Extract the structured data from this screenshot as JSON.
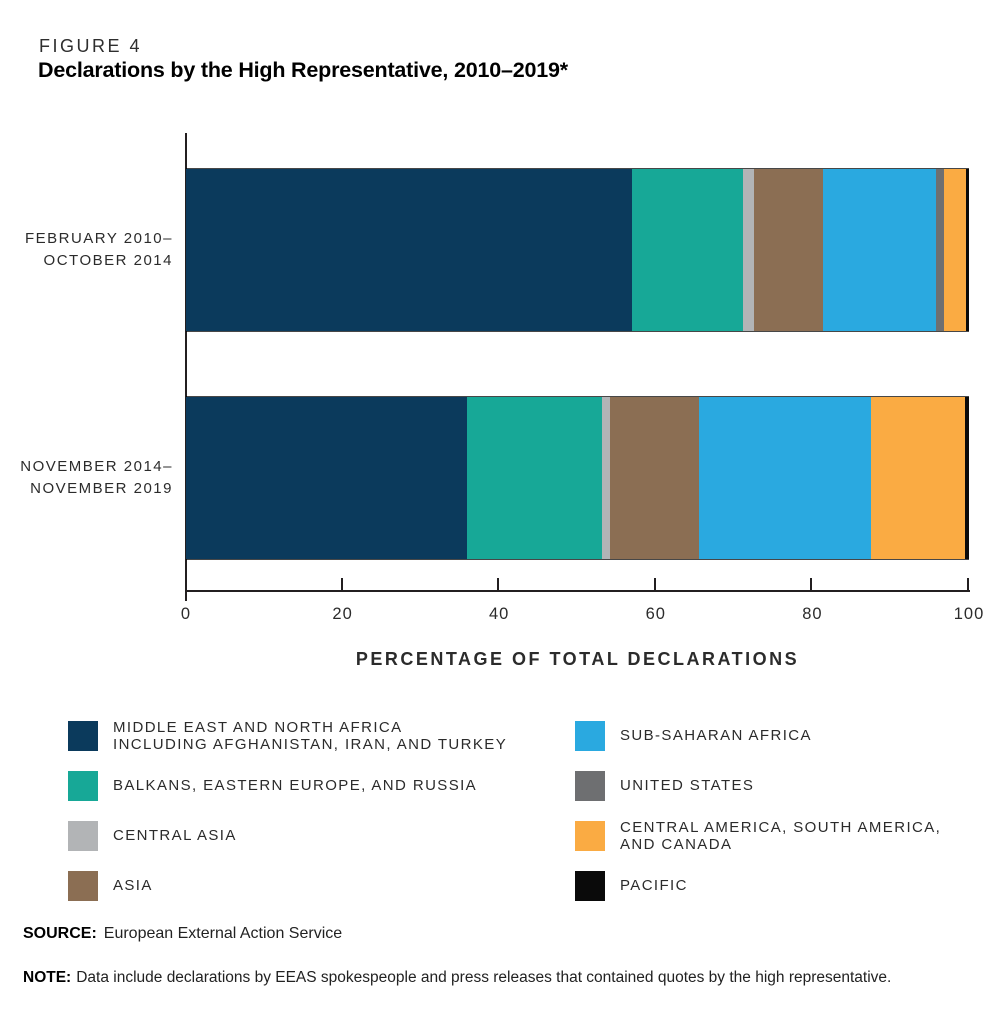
{
  "figure": {
    "label": "FIGURE 4",
    "title": "Declarations by the High Representative, 2010–2019*"
  },
  "chart_data": {
    "type": "bar",
    "orientation": "horizontal",
    "stacked": true,
    "unit": "percent",
    "title": "Declarations by the High Representative, 2010–2019*",
    "xlabel": "PERCENTAGE OF TOTAL DECLARATIONS",
    "xlim": [
      0,
      100
    ],
    "x_ticks": [
      0,
      20,
      40,
      60,
      80,
      100
    ],
    "grid": false,
    "legend_position": "below",
    "categories": [
      "FEBRUARY 2010–OCTOBER 2014",
      "NOVEMBER 2014–NOVEMBER 2019"
    ],
    "category_label_lines": [
      [
        "FEBRUARY 2010–",
        "OCTOBER 2014"
      ],
      [
        "NOVEMBER 2014–",
        "NOVEMBER 2019"
      ]
    ],
    "series": [
      {
        "name": "MIDDLE EAST AND NORTH AFRICA INCLUDING AFGHANISTAN, IRAN, AND TURKEY",
        "color": "#0b3a5c",
        "values": [
          57.0,
          35.9
        ]
      },
      {
        "name": "BALKANS, EASTERN EUROPE, AND RUSSIA",
        "color": "#17a897",
        "values": [
          14.2,
          17.2
        ]
      },
      {
        "name": "CENTRAL ASIA",
        "color": "#b2b4b6",
        "values": [
          1.3,
          1.0
        ]
      },
      {
        "name": "ASIA",
        "color": "#8b6e53",
        "values": [
          8.9,
          11.4
        ]
      },
      {
        "name": "SUB-SAHARAN AFRICA",
        "color": "#2aa9e0",
        "values": [
          14.4,
          22.0
        ]
      },
      {
        "name": "UNITED STATES",
        "color": "#6e6f71",
        "values": [
          1.0,
          0.0
        ]
      },
      {
        "name": "CENTRAL AMERICA, SOUTH AMERICA, AND CANADA",
        "color": "#faab43",
        "values": [
          2.8,
          12.0
        ]
      },
      {
        "name": "PACIFIC",
        "color": "#0a0a0a",
        "values": [
          0.4,
          0.5
        ]
      }
    ]
  },
  "legend": {
    "columns": [
      {
        "items": [
          {
            "lines": [
              "MIDDLE EAST AND NORTH AFRICA",
              "INCLUDING AFGHANISTAN, IRAN, AND TURKEY"
            ],
            "color": "#0b3a5c"
          },
          {
            "lines": [
              "BALKANS, EASTERN EUROPE, AND RUSSIA"
            ],
            "color": "#17a897"
          },
          {
            "lines": [
              "CENTRAL ASIA"
            ],
            "color": "#b2b4b6"
          },
          {
            "lines": [
              "ASIA"
            ],
            "color": "#8b6e53"
          }
        ]
      },
      {
        "items": [
          {
            "lines": [
              "SUB-SAHARAN AFRICA"
            ],
            "color": "#2aa9e0"
          },
          {
            "lines": [
              "UNITED STATES"
            ],
            "color": "#6e6f71"
          },
          {
            "lines": [
              "CENTRAL AMERICA, SOUTH AMERICA,",
              "AND CANADA"
            ],
            "color": "#faab43"
          },
          {
            "lines": [
              "PACIFIC"
            ],
            "color": "#0a0a0a"
          }
        ]
      }
    ]
  },
  "source": {
    "label": "SOURCE:",
    "text": "European External Action Service"
  },
  "note": {
    "label": "NOTE:",
    "text": "Data include declarations by EEAS spokespeople and press releases that contained quotes by the high representative."
  },
  "colors": {
    "axis": "#231f20",
    "text": "#2b2b2b",
    "background": "#ffffff"
  }
}
